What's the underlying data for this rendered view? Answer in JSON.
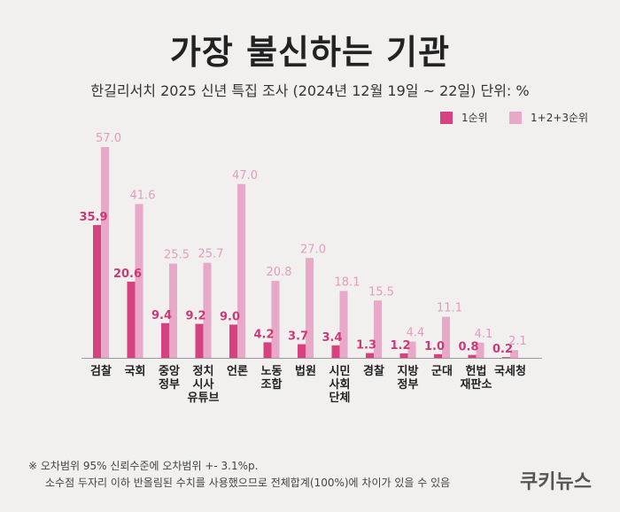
{
  "title": "가장 불신하는 기관",
  "subtitle": "한길리서치 2025 신년 특집 조사 (2024년 12월 19일 ~ 22일) 단위: %",
  "legend": {
    "first": "1순위",
    "top3": "1+2+3순위"
  },
  "colors": {
    "first": "#d6427f",
    "top3": "#e8a9c8",
    "first_label": "#c93a76",
    "top3_label": "#e39cbf"
  },
  "chart_data": {
    "type": "bar",
    "categories": [
      [
        "검찰"
      ],
      [
        "국회"
      ],
      [
        "중앙",
        "정부"
      ],
      [
        "정치",
        "시사",
        "유튜브"
      ],
      [
        "언론"
      ],
      [
        "노동",
        "조합"
      ],
      [
        "법원"
      ],
      [
        "시민",
        "사회",
        "단체"
      ],
      [
        "경찰"
      ],
      [
        "지방",
        "정부"
      ],
      [
        "군대"
      ],
      [
        "헌법",
        "재판소"
      ],
      [
        "국세청"
      ]
    ],
    "series": [
      {
        "name": "1순위",
        "values": [
          35.9,
          20.6,
          9.4,
          9.2,
          9.0,
          4.2,
          3.7,
          3.4,
          1.3,
          1.2,
          1.0,
          0.8,
          0.2
        ],
        "labels": [
          "35.9",
          "20.6",
          "9.4",
          "9.2",
          "9.0",
          "4.2",
          "3.7",
          "3.4",
          "1.3",
          "1.2",
          "1.0",
          "0.8",
          "0.2"
        ]
      },
      {
        "name": "1+2+3순위",
        "values": [
          57.0,
          41.6,
          25.5,
          25.7,
          47.0,
          20.8,
          27.0,
          18.1,
          15.5,
          4.4,
          11.1,
          4.1,
          2.1
        ],
        "labels": [
          "57.0",
          "41.6",
          "25.5",
          "25.7",
          "47.0",
          "20.8",
          "27.0",
          "18.1",
          "15.5",
          "4.4",
          "11.1",
          "4.1",
          "2.1"
        ]
      }
    ],
    "ylim": [
      0,
      57
    ],
    "grid": false,
    "legend_position": "top-right"
  },
  "note": {
    "line1": "※ 오차범위 95% 신뢰수준에 오차범위 +- 3.1%p.",
    "line2": "소수점 두자리 이하 반올림된 수치를 사용했으므로 전체합계(100%)에 차이가 있을 수 있음"
  },
  "brand": "쿠키뉴스"
}
